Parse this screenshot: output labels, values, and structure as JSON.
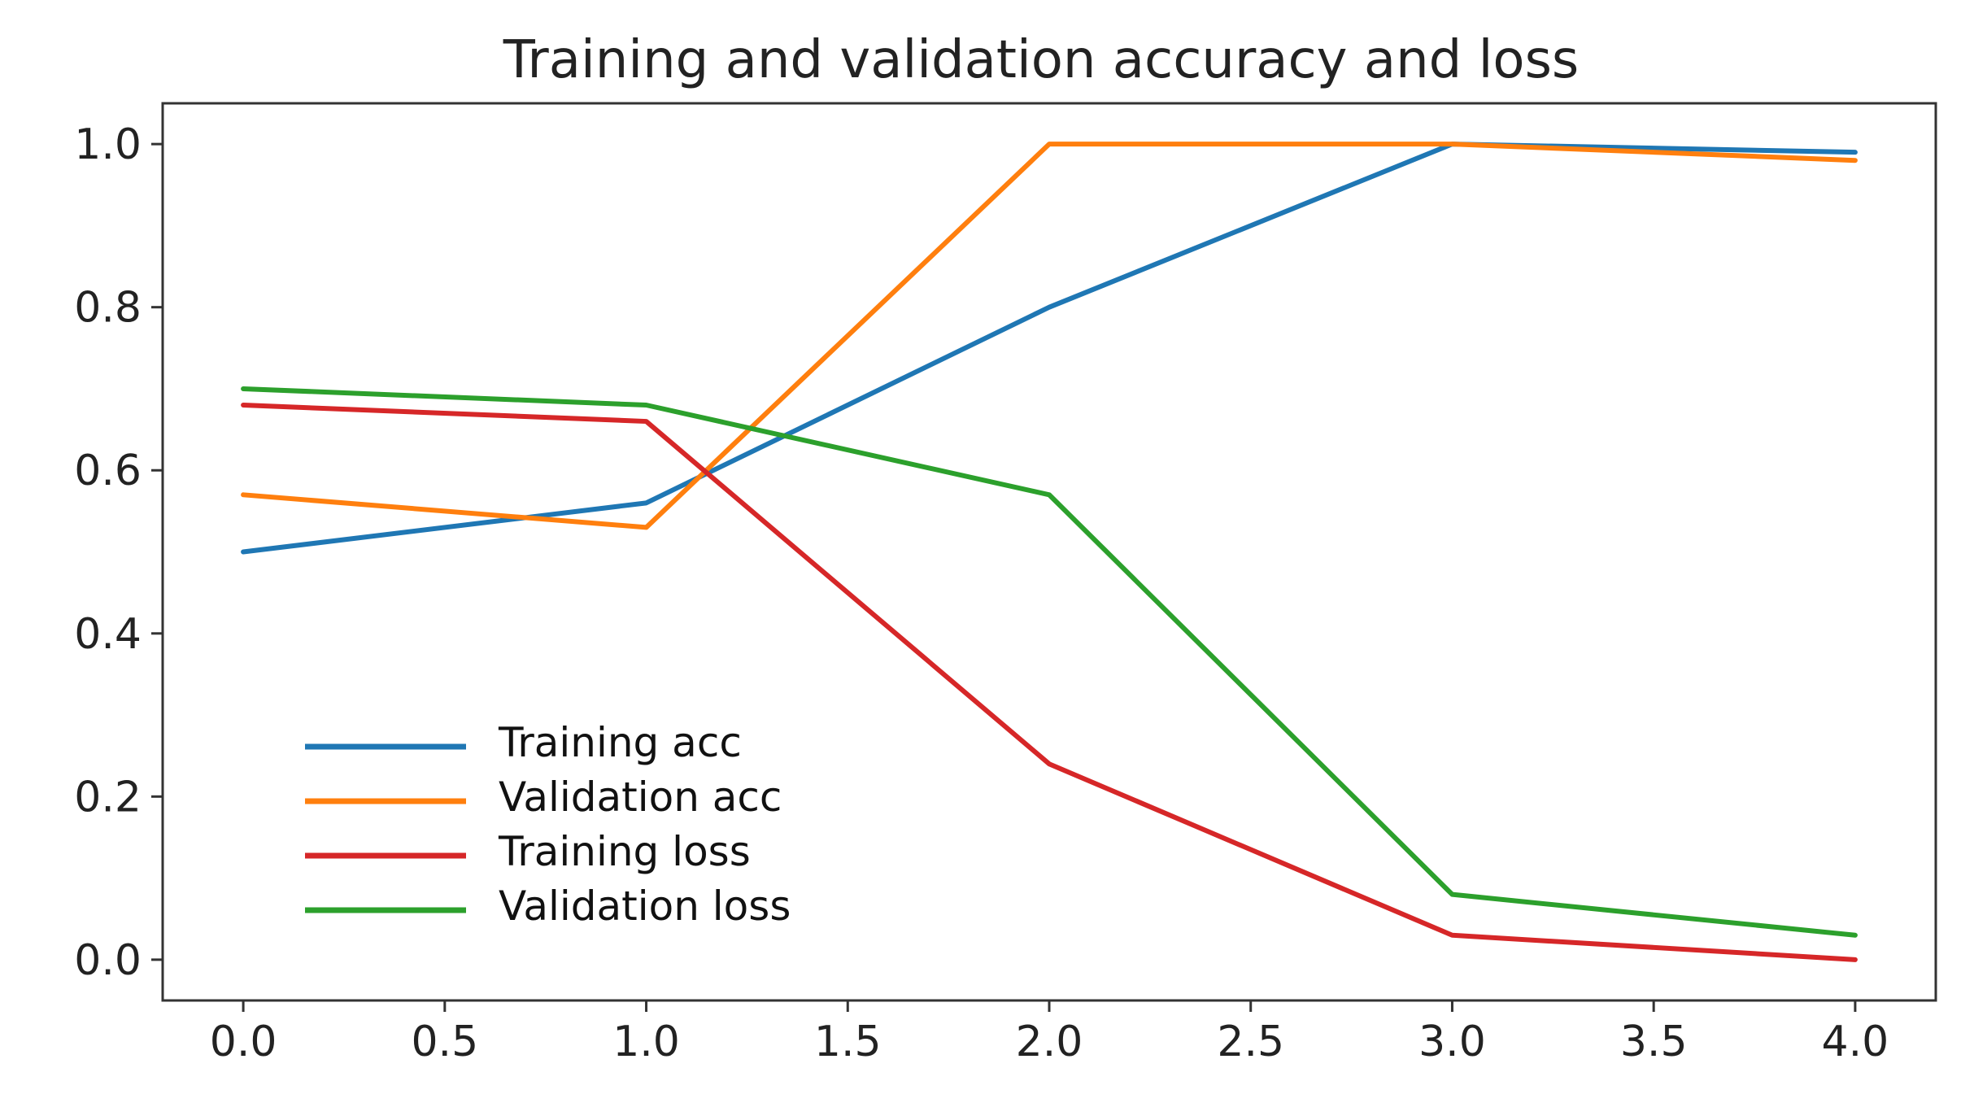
{
  "chart_data": {
    "type": "line",
    "title": "Training and validation accuracy and loss",
    "xlabel": "",
    "ylabel": "",
    "xlim": [
      -0.2,
      4.2
    ],
    "ylim": [
      -0.05,
      1.05
    ],
    "grid": false,
    "legend_position": "lower-left",
    "xticks": [
      0.0,
      0.5,
      1.0,
      1.5,
      2.0,
      2.5,
      3.0,
      3.5,
      4.0
    ],
    "xtick_labels": [
      "0.0",
      "0.5",
      "1.0",
      "1.5",
      "2.0",
      "2.5",
      "3.0",
      "3.5",
      "4.0"
    ],
    "yticks": [
      0.0,
      0.2,
      0.4,
      0.6,
      0.8,
      1.0
    ],
    "ytick_labels": [
      "0.0",
      "0.2",
      "0.4",
      "0.6",
      "0.8",
      "1.0"
    ],
    "x": [
      0,
      1,
      2,
      3,
      4
    ],
    "series": [
      {
        "name": "Training acc",
        "color": "#1f77b4",
        "values": [
          0.5,
          0.56,
          0.8,
          1.0,
          0.99
        ]
      },
      {
        "name": "Validation acc",
        "color": "#ff7f0e",
        "values": [
          0.57,
          0.53,
          1.0,
          1.0,
          0.98
        ]
      },
      {
        "name": "Training loss",
        "color": "#d62728",
        "values": [
          0.68,
          0.66,
          0.24,
          0.03,
          0.0
        ]
      },
      {
        "name": "Validation loss",
        "color": "#2ca02c",
        "values": [
          0.7,
          0.68,
          0.57,
          0.08,
          0.03
        ]
      }
    ]
  }
}
